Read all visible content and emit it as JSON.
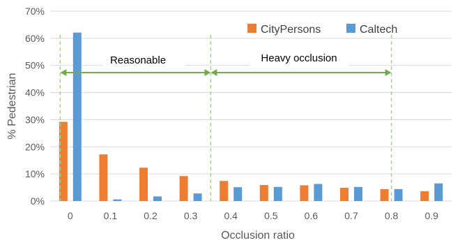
{
  "chart_data": {
    "type": "bar",
    "xlabel": "Occlusion ratio",
    "ylabel": "% Pedestrian",
    "ylim": [
      0,
      70
    ],
    "y_ticks": [
      0,
      10,
      20,
      30,
      40,
      50,
      60,
      70
    ],
    "y_tick_labels": [
      "0%",
      "10%",
      "20%",
      "30%",
      "40%",
      "50%",
      "60%",
      "70%"
    ],
    "grid": "horizontal",
    "legend_position": "top-right",
    "categories": [
      "0",
      "0.1",
      "0.2",
      "0.3",
      "0.4",
      "0.5",
      "0.6",
      "0.7",
      "0.8",
      "0.9"
    ],
    "series": [
      {
        "name": "CityPersons",
        "color": "#ED7D31",
        "values": [
          29.2,
          17.2,
          12.3,
          9.2,
          7.4,
          5.9,
          5.8,
          4.9,
          4.4,
          3.6
        ]
      },
      {
        "name": "Caltech",
        "color": "#5B9BD5",
        "values": [
          62.1,
          0.6,
          1.7,
          2.8,
          5.1,
          5.2,
          6.3,
          5.2,
          4.4,
          6.5
        ]
      }
    ],
    "annotations": {
      "reasonable": {
        "label": "Reasonable",
        "from_occlusion": 0,
        "to_occlusion": 0.35
      },
      "heavy": {
        "label": "Heavy occlusion",
        "from_occlusion": 0.35,
        "to_occlusion": 0.8
      },
      "color": "#70AD47"
    }
  }
}
